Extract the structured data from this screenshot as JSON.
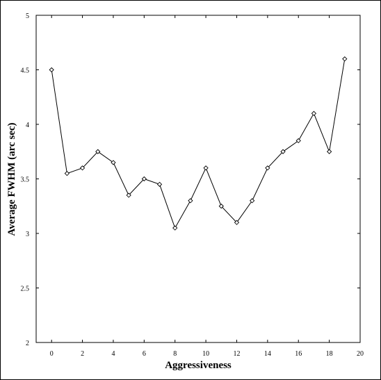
{
  "chart_data": {
    "type": "line",
    "title": "",
    "xlabel": "Aggressiveness",
    "ylabel": "Average FWHM (arc sec)",
    "xlim": [
      -1,
      20
    ],
    "ylim": [
      2,
      5
    ],
    "x_ticks": [
      0,
      2,
      4,
      6,
      8,
      10,
      12,
      14,
      16,
      18,
      20
    ],
    "x_tick_labels": [
      "0",
      "2",
      "4",
      "6",
      "8",
      "10",
      "12",
      "14",
      "16",
      "18",
      "20"
    ],
    "y_ticks": [
      2,
      2.5,
      3,
      3.5,
      4,
      4.5,
      5
    ],
    "y_tick_labels": [
      "2",
      "2.5",
      "3",
      "3.5",
      "4",
      "4.5",
      "5"
    ],
    "grid": false,
    "marker": "diamond",
    "series": [
      {
        "name": "",
        "x": [
          0,
          1,
          2,
          3,
          4,
          5,
          6,
          7,
          8,
          9,
          10,
          11,
          12,
          13,
          14,
          15,
          16,
          17,
          18,
          19
        ],
        "y": [
          4.5,
          3.55,
          3.6,
          3.75,
          3.65,
          3.35,
          3.5,
          3.45,
          3.05,
          3.3,
          3.6,
          3.25,
          3.1,
          3.3,
          3.6,
          3.75,
          3.85,
          4.1,
          3.75,
          4.6
        ]
      }
    ]
  }
}
